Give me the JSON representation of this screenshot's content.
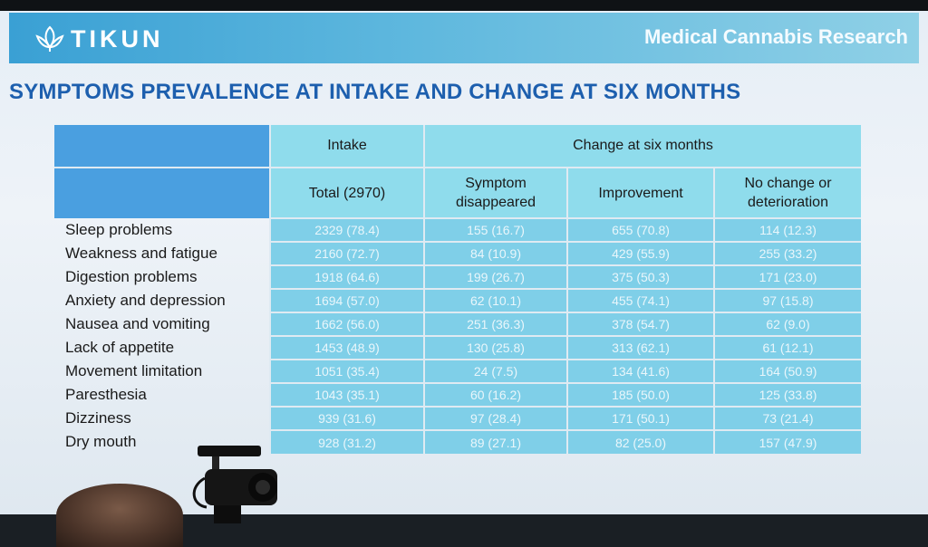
{
  "banner": {
    "logo_text": "TIKUN",
    "subtitle": "Medical Cannabis Research"
  },
  "slide_title": "SYMPTOMS PREVALENCE AT INTAKE AND CHANGE AT SIX MONTHS",
  "table": {
    "group_headers": {
      "intake": "Intake",
      "change": "Change at six months"
    },
    "columns": [
      "Total (2970)",
      "Symptom disappeared",
      "Improvement",
      "No change or deterioration"
    ],
    "rows": [
      {
        "label": "Sleep problems",
        "total": "2329 (78.4)",
        "disappeared": "155 (16.7)",
        "improvement": "655 (70.8)",
        "no_change": "114 (12.3)"
      },
      {
        "label": "Weakness and fatigue",
        "total": "2160 (72.7)",
        "disappeared": "84 (10.9)",
        "improvement": "429 (55.9)",
        "no_change": "255 (33.2)"
      },
      {
        "label": "Digestion problems",
        "total": "1918 (64.6)",
        "disappeared": "199 (26.7)",
        "improvement": "375 (50.3)",
        "no_change": "171 (23.0)"
      },
      {
        "label": "Anxiety and depression",
        "total": "1694 (57.0)",
        "disappeared": "62 (10.1)",
        "improvement": "455 (74.1)",
        "no_change": "97 (15.8)"
      },
      {
        "label": "Nausea and vomiting",
        "total": "1662 (56.0)",
        "disappeared": "251 (36.3)",
        "improvement": "378 (54.7)",
        "no_change": "62 (9.0)"
      },
      {
        "label": "Lack of appetite",
        "total": "1453 (48.9)",
        "disappeared": "130 (25.8)",
        "improvement": "313 (62.1)",
        "no_change": "61 (12.1)"
      },
      {
        "label": "Movement limitation",
        "total": "1051 (35.4)",
        "disappeared": "24 (7.5)",
        "improvement": "134 (41.6)",
        "no_change": "164 (50.9)"
      },
      {
        "label": "Paresthesia",
        "total": "1043 (35.1)",
        "disappeared": "60 (16.2)",
        "improvement": "185 (50.0)",
        "no_change": "125 (33.8)"
      },
      {
        "label": "Dizziness",
        "total": "939 (31.6)",
        "disappeared": "97 (28.4)",
        "improvement": "171 (50.1)",
        "no_change": "73 (21.4)"
      },
      {
        "label": "Dry mouth",
        "total": "928 (31.2)",
        "disappeared": "89 (27.1)",
        "improvement": "82 (25.0)",
        "no_change": "157 (47.9)"
      }
    ]
  },
  "colors": {
    "banner": "#3aa0d4",
    "title": "#1d5fae",
    "header_blue": "#4a9fe0",
    "header_cyan": "#8fdcec",
    "cell": "#7fcfe8"
  }
}
